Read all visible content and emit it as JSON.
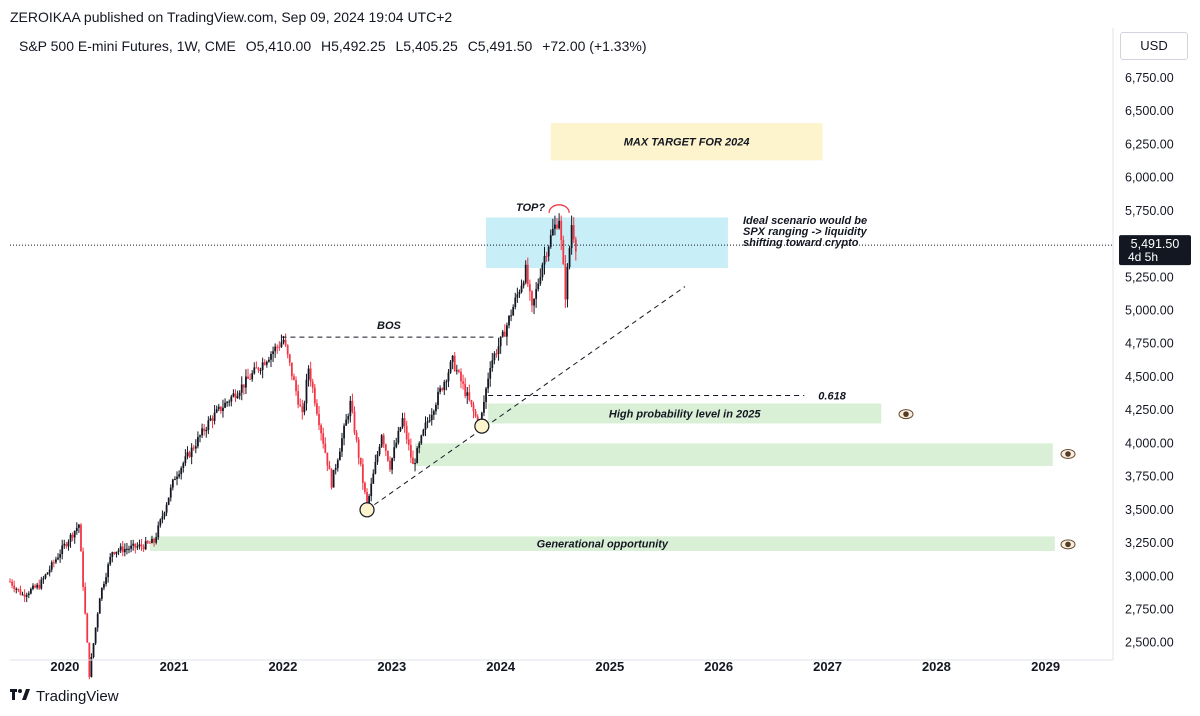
{
  "header": {
    "publisher": "ZEROIKAA published on TradingView.com, Sep 09, 2024 19:04 UTC+2",
    "symbol": "S&P 500 E-mini Futures, 1W, CME",
    "open": "O5,410.00",
    "high": "H5,492.25",
    "low": "L5,405.25",
    "close": "C5,491.50",
    "change": "+72.00 (+1.33%)"
  },
  "currency_button": "USD",
  "footer": {
    "brand": "TradingView",
    "logo_icon": "tradingview-logo-icon"
  },
  "price_label": {
    "price": "5,491.50",
    "countdown": "4d 5h"
  },
  "colors": {
    "up": "#131722",
    "down": "#f23645",
    "target_zone": "#fdf3cc",
    "range_zone": "#c8eef8",
    "support_zone": "#d9f0d6",
    "top_arc": "#f23645"
  },
  "chart_data": {
    "type": "candlestick",
    "interval": "1W",
    "ylim": [
      2400,
      6900
    ],
    "xlim": [
      "2019-07-01",
      "2029-08-15"
    ],
    "y_ticks": [
      "2,500.00",
      "2,750.00",
      "3,000.00",
      "3,250.00",
      "3,500.00",
      "3,750.00",
      "4,000.00",
      "4,250.00",
      "4,500.00",
      "4,750.00",
      "5,000.00",
      "5,250.00",
      "5,500.00",
      "5,750.00",
      "6,000.00",
      "6,250.00",
      "6,500.00",
      "6,750.00"
    ],
    "x_ticks": [
      "2020",
      "2021",
      "2022",
      "2023",
      "2024",
      "2025",
      "2026",
      "2027",
      "2028",
      "2029"
    ],
    "x_tick_dates": [
      "2020-01-01",
      "2021-01-01",
      "2022-01-01",
      "2023-01-01",
      "2024-01-01",
      "2025-01-01",
      "2026-01-01",
      "2027-01-01",
      "2028-01-01",
      "2029-01-01"
    ],
    "grid": false,
    "last_price": 5491.5,
    "price_path": [
      [
        "2019-07-01",
        2960
      ],
      [
        "2019-08-12",
        2860
      ],
      [
        "2019-10-07",
        2930
      ],
      [
        "2019-12-30",
        3230
      ],
      [
        "2020-02-17",
        3390
      ],
      [
        "2020-03-23",
        2260
      ],
      [
        "2020-04-27",
        2850
      ],
      [
        "2020-06-08",
        3190
      ],
      [
        "2020-09-21",
        3230
      ],
      [
        "2020-10-26",
        3260
      ],
      [
        "2021-01-04",
        3750
      ],
      [
        "2021-05-03",
        4180
      ],
      [
        "2021-09-06",
        4480
      ],
      [
        "2021-11-22",
        4680
      ],
      [
        "2022-01-03",
        4780
      ],
      [
        "2022-03-07",
        4200
      ],
      [
        "2022-03-28",
        4570
      ],
      [
        "2022-06-13",
        3700
      ],
      [
        "2022-08-15",
        4300
      ],
      [
        "2022-10-10",
        3520
      ],
      [
        "2022-11-28",
        4080
      ],
      [
        "2022-12-26",
        3830
      ],
      [
        "2023-02-06",
        4180
      ],
      [
        "2023-03-13",
        3830
      ],
      [
        "2023-04-24",
        4130
      ],
      [
        "2023-07-24",
        4620
      ],
      [
        "2023-10-23",
        4120
      ],
      [
        "2023-11-27",
        4600
      ],
      [
        "2024-01-08",
        4800
      ],
      [
        "2024-03-25",
        5300
      ],
      [
        "2024-04-15",
        5000
      ],
      [
        "2024-05-20",
        5360
      ],
      [
        "2024-06-24",
        5600
      ],
      [
        "2024-07-15",
        5700
      ],
      [
        "2024-08-05",
        5120
      ],
      [
        "2024-08-26",
        5650
      ],
      [
        "2024-09-09",
        5491.5
      ]
    ],
    "zones": [
      {
        "label": "MAX TARGET FOR 2024",
        "x0": "2024-06-17",
        "x1": "2026-12-15",
        "y0": 6130,
        "y1": 6410,
        "color": "target_zone"
      },
      {
        "label": "",
        "x0": "2023-11-13",
        "x1": "2026-02-01",
        "y0": 5320,
        "y1": 5700,
        "color": "range_zone"
      },
      {
        "label": "High probability level in 2025",
        "x0": "2023-11-20",
        "x1": "2027-06-30",
        "y0": 4150,
        "y1": 4300,
        "color": "support_zone"
      },
      {
        "label": "",
        "x0": "2023-03-20",
        "x1": "2029-01-25",
        "y0": 3830,
        "y1": 4000,
        "color": "support_zone"
      },
      {
        "label": "Generational opportunity",
        "x0": "2020-10-12",
        "x1": "2029-02-01",
        "y0": 3190,
        "y1": 3300,
        "color": "support_zone"
      }
    ],
    "lines": [
      {
        "label": "BOS",
        "from": [
          "2021-12-27",
          4800
        ],
        "to": [
          "2023-12-18",
          4800
        ],
        "style": "dashed"
      },
      {
        "label": "0.618",
        "from": [
          "2023-11-20",
          4360
        ],
        "to": [
          "2026-10-15",
          4360
        ],
        "style": "dashed"
      },
      {
        "label": "",
        "from": [
          "2022-10-10",
          3500
        ],
        "to": [
          "2025-09-10",
          5180
        ],
        "style": "dashed"
      }
    ],
    "markers": [
      {
        "label": "",
        "date": "2022-10-10",
        "price": 3500,
        "type": "circle"
      },
      {
        "label": "",
        "date": "2023-10-30",
        "price": 4130,
        "type": "circle"
      },
      {
        "label": "TOP?",
        "date": "2024-07-15",
        "price": 5750,
        "type": "arc"
      }
    ],
    "annotations": [
      {
        "text": "Ideal scenario would be SPX ranging -> liquidity shifting toward crypto"
      }
    ],
    "eye_markers": [
      {
        "icon": "eye-icon",
        "price": 4220
      },
      {
        "icon": "eye-icon",
        "price": 3920
      },
      {
        "icon": "eye-icon",
        "price": 3240
      }
    ]
  }
}
